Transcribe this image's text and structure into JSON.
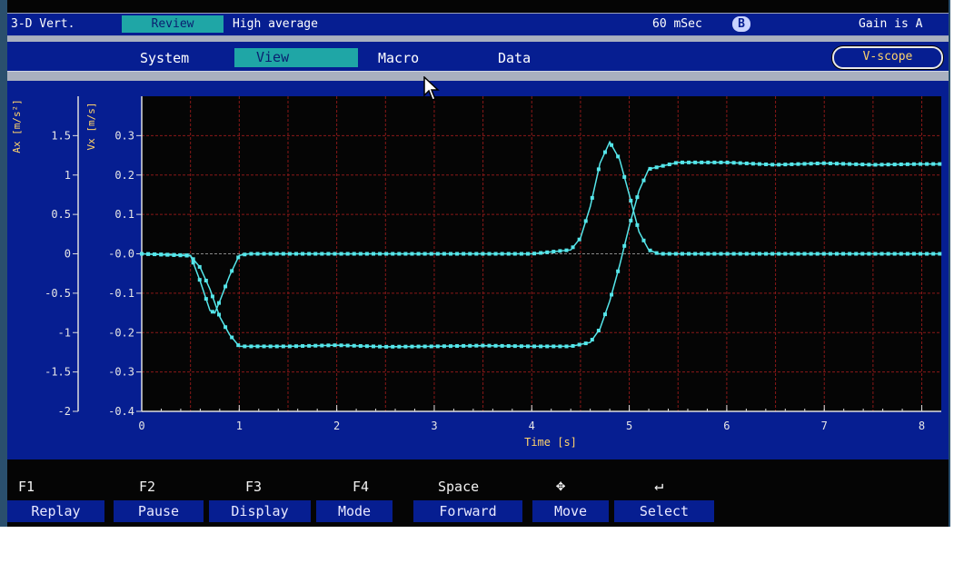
{
  "status": {
    "mode": "3-D Vert.",
    "review": "Review",
    "average": "High average",
    "interval": "60 mSec",
    "badge": "B",
    "gain": "Gain is A"
  },
  "menu": {
    "system": "System",
    "view": "View",
    "macro": "Macro",
    "data": "Data",
    "vscope": "V-scope"
  },
  "function_keys": [
    {
      "key": "F1",
      "label": "Replay"
    },
    {
      "key": "F2",
      "label": "Pause"
    },
    {
      "key": "F3",
      "label": "Display"
    },
    {
      "key": "F4",
      "label": "Mode"
    },
    {
      "key": "Space",
      "label": "Forward"
    },
    {
      "key": "✥",
      "label": "Move"
    },
    {
      "key": "↵",
      "label": "Select"
    }
  ],
  "colors": {
    "panel": "#061e91",
    "grid": "#8a1818",
    "trace": "#55e6ea",
    "axis_label": "#ffd46b",
    "highlight": "#1fa6a6"
  },
  "chart_data": {
    "type": "line",
    "xlabel": "Time [s]",
    "left_axis_label": "Ax [m/s²]",
    "right_axis_label": "Vx [m/s]",
    "xlim": [
      0,
      8.2
    ],
    "x_ticks": [
      "0",
      "1",
      "2",
      "3",
      "4",
      "5",
      "6",
      "7",
      "8"
    ],
    "ax_ylim": [
      -2,
      2
    ],
    "ax_ticks": [
      "1.5",
      "1",
      "0.5",
      "0",
      "-0.5",
      "-1",
      "-1.5",
      "-2"
    ],
    "vx_ylim": [
      -0.4,
      0.4
    ],
    "vx_ticks": [
      "0.3",
      "0.2",
      "0.1",
      "-0.0",
      "-0.1",
      "-0.2",
      "-0.3",
      "-0.4"
    ],
    "grid": true,
    "series": [
      {
        "axis": "vx",
        "x": [
          0,
          0.5,
          0.6,
          0.7,
          0.8,
          0.9,
          1.0,
          1.5,
          2.0,
          2.5,
          3.0,
          3.5,
          4.0,
          4.4,
          4.6,
          4.7,
          4.8,
          4.9,
          5.0,
          5.1,
          5.2,
          5.5,
          6.0,
          6.5,
          7.0,
          7.5,
          8.0,
          8.2
        ],
        "y": [
          0.0,
          -0.005,
          -0.035,
          -0.09,
          -0.16,
          -0.205,
          -0.235,
          -0.235,
          -0.232,
          -0.236,
          -0.235,
          -0.233,
          -0.235,
          -0.235,
          -0.225,
          -0.19,
          -0.12,
          -0.03,
          0.07,
          0.16,
          0.215,
          0.232,
          0.232,
          0.226,
          0.23,
          0.226,
          0.228,
          0.228
        ]
      },
      {
        "axis": "ax",
        "x": [
          0,
          0.5,
          0.6,
          0.7,
          0.75,
          0.8,
          0.9,
          1.0,
          1.1,
          1.5,
          2.0,
          3.0,
          4.0,
          4.4,
          4.5,
          4.6,
          4.7,
          4.8,
          4.9,
          5.0,
          5.1,
          5.2,
          5.3,
          6.0,
          7.0,
          8.0,
          8.2
        ],
        "y": [
          0.0,
          -0.02,
          -0.35,
          -0.72,
          -0.75,
          -0.6,
          -0.28,
          -0.02,
          0.0,
          0.0,
          0.0,
          0.0,
          0.0,
          0.05,
          0.2,
          0.6,
          1.15,
          1.42,
          1.2,
          0.75,
          0.28,
          0.05,
          0.0,
          0.0,
          0.0,
          0.0,
          0.0
        ]
      }
    ]
  }
}
